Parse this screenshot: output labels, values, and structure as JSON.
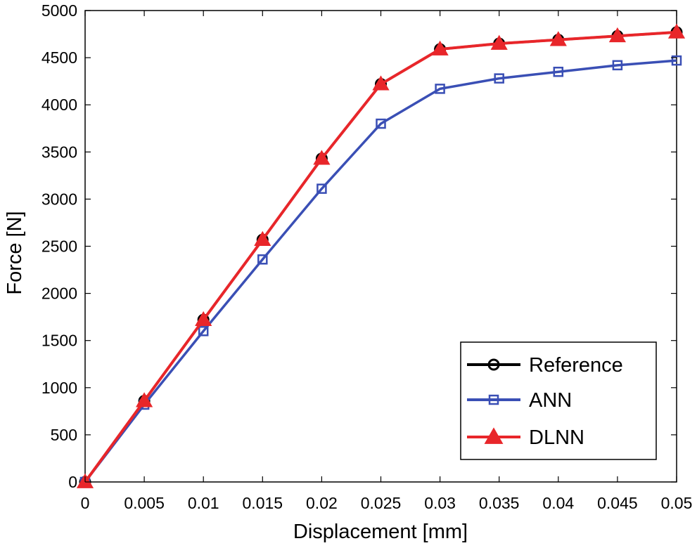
{
  "chart_data": {
    "type": "line",
    "xlabel": "Displacement [mm]",
    "ylabel": "Force [N]",
    "xlim": [
      0,
      0.05
    ],
    "ylim": [
      0,
      5000
    ],
    "x_tick_labels": [
      "0",
      "0.005",
      "0.01",
      "0.015",
      "0.02",
      "0.025",
      "0.03",
      "0.035",
      "0.04",
      "0.045",
      "0.05"
    ],
    "y_tick_labels": [
      "0",
      "500",
      "1000",
      "1500",
      "2000",
      "2500",
      "3000",
      "3500",
      "4000",
      "4500",
      "5000"
    ],
    "grid": false,
    "legend_position": "bottom-right",
    "x": [
      0,
      0.005,
      0.01,
      0.015,
      0.02,
      0.025,
      0.03,
      0.035,
      0.04,
      0.045,
      0.05
    ],
    "series": [
      {
        "name": "Reference",
        "color": "#000000",
        "marker": "circle",
        "values": [
          0,
          860,
          1720,
          2570,
          3430,
          4220,
          4590,
          4650,
          4690,
          4730,
          4770
        ]
      },
      {
        "name": "ANN",
        "color": "#3a4fb5",
        "marker": "square",
        "values": [
          0,
          820,
          1600,
          2360,
          3110,
          3800,
          4170,
          4280,
          4350,
          4420,
          4470
        ]
      },
      {
        "name": "DLNN",
        "color": "#e8262a",
        "marker": "triangle",
        "values": [
          0,
          860,
          1720,
          2570,
          3430,
          4220,
          4590,
          4650,
          4690,
          4730,
          4770
        ]
      }
    ]
  }
}
